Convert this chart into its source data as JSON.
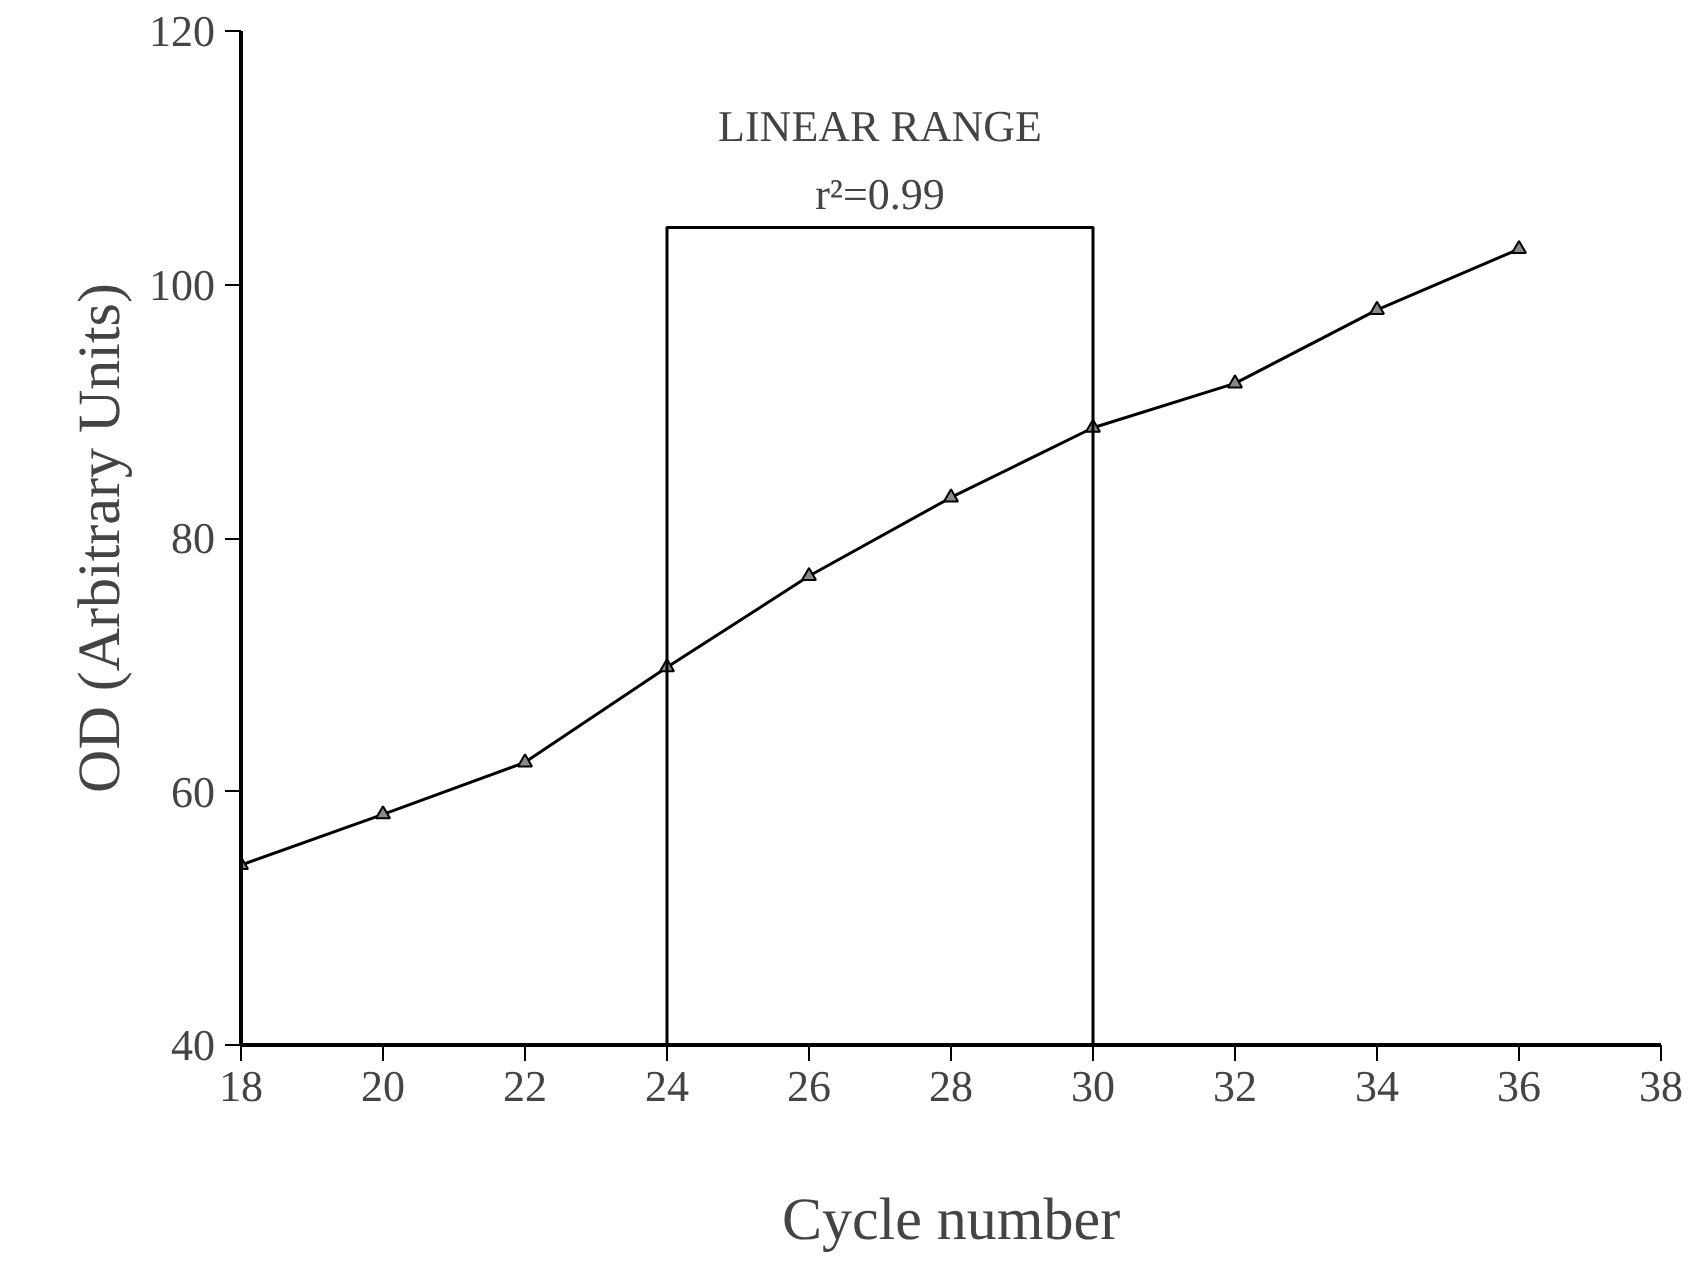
{
  "chart_data": {
    "type": "line",
    "xlabel": "Cycle number",
    "ylabel": "OD (Arbitrary Units)",
    "xlim": [
      18,
      38
    ],
    "xticks": [
      18,
      20,
      22,
      24,
      26,
      28,
      30,
      32,
      34,
      36,
      38
    ],
    "ylim": [
      40,
      120
    ],
    "yticks": [
      40,
      60,
      80,
      100,
      120
    ],
    "grid": false,
    "series": [
      {
        "color": "#000000",
        "marker": "triangle",
        "x": [
          18,
          20,
          22,
          24,
          26,
          28,
          30,
          32,
          34,
          36
        ],
        "values": [
          54.2,
          58.2,
          62.3,
          69.8,
          77,
          83.2,
          88.7,
          92.2,
          98,
          102.8
        ]
      },
      {
        "color": "#000000",
        "marker": "none",
        "x": [
          24,
          24,
          30,
          30
        ],
        "values": [
          40,
          104.5,
          104.5,
          40
        ]
      }
    ],
    "annotations": [
      "LINEAR RANGE",
      "r²=0.99"
    ]
  }
}
